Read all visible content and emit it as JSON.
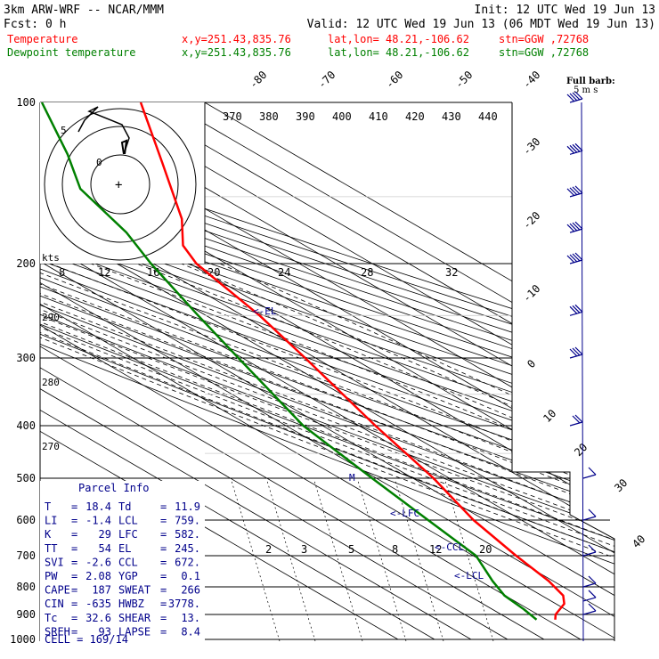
{
  "header": {
    "model": "3km ARW-WRF -- NCAR/MMM",
    "init": "Init: 12 UTC Wed 19 Jun 13",
    "fcst": "Fcst:     0 h",
    "valid": "Valid: 12 UTC Wed 19 Jun 13 (06 MDT Wed 19 Jun 13)"
  },
  "legend": [
    {
      "name": "Temperature",
      "xy": "x,y=251.43,835.76",
      "latlon": "lat,lon= 48.21,-106.62",
      "stn": "stn=GGW ,72768",
      "color": "#ff0000"
    },
    {
      "name": "Dewpoint temperature",
      "xy": "x,y=251.43,835.76",
      "latlon": "lat,lon= 48.21,-106.62",
      "stn": "stn=GGW ,72768",
      "color": "#00a000"
    }
  ],
  "barb_title": [
    "Full barb:",
    "5 m s"
  ],
  "hodo": {
    "kts_label": "kts",
    "ring_labels": [
      "8",
      "12",
      "16",
      "20",
      "24",
      "28",
      "32"
    ],
    "labels": [
      "5",
      "0"
    ]
  },
  "parcel": {
    "title": "Parcel Info",
    "rows": [
      [
        "T",
        "18.4",
        "Td",
        "11.9"
      ],
      [
        "LI",
        "-1.4",
        "LCL",
        "759."
      ],
      [
        "K",
        "29",
        "LFC",
        "582."
      ],
      [
        "TT",
        "54",
        "EL",
        "245."
      ],
      [
        "SVI",
        "-2.6",
        "CCL",
        "672."
      ],
      [
        "PW",
        "2.08",
        "YGP",
        "0.1"
      ],
      [
        "CAPE",
        "187",
        "SWEAT",
        "266"
      ],
      [
        "CIN",
        "-635",
        "HWBZ",
        "3778."
      ],
      [
        "Tc",
        "32.6",
        "SHEAR",
        "13."
      ],
      [
        "SREH",
        "93",
        "LAPSE",
        "8.4"
      ]
    ],
    "cell": "CELL = 169/14"
  },
  "level_markers": {
    "el": "<-EL",
    "lfc": "<-LFC",
    "ccl": "<-CCL",
    "lcl": "<-LCL",
    "m": "M"
  },
  "chart_data": {
    "type": "line",
    "title": "",
    "pressure_levels": [
      100,
      200,
      300,
      400,
      500,
      600,
      700,
      800,
      900,
      1000
    ],
    "isotherm_labels": [
      -80,
      -70,
      -60,
      -50,
      -40,
      -30,
      -20,
      -10,
      0,
      10,
      20,
      30,
      40
    ],
    "theta_labels": [
      370,
      380,
      390,
      400,
      410,
      420,
      430,
      440
    ],
    "theta_low_labels": [
      290,
      280,
      270
    ],
    "mixing_ratio_labels": [
      2,
      3,
      5,
      8,
      12,
      20
    ],
    "series": [
      {
        "name": "Temperature",
        "color": "#ff0000",
        "points": [
          [
            100,
            -60
          ],
          [
            130,
            -62
          ],
          [
            165,
            -64
          ],
          [
            185,
            -68
          ],
          [
            200,
            -66
          ],
          [
            250,
            -51
          ],
          [
            300,
            -41
          ],
          [
            400,
            -26
          ],
          [
            500,
            -13
          ],
          [
            600,
            -5
          ],
          [
            700,
            5
          ],
          [
            780,
            13
          ],
          [
            830,
            16
          ],
          [
            860,
            15
          ],
          [
            900,
            10
          ],
          [
            920,
            9
          ]
        ]
      },
      {
        "name": "Dewpoint temperature",
        "color": "#008000",
        "points": [
          [
            100,
            -97
          ],
          [
            125,
            -96
          ],
          [
            145,
            -97
          ],
          [
            175,
            -87
          ],
          [
            200,
            -83
          ],
          [
            250,
            -74
          ],
          [
            300,
            -66
          ],
          [
            400,
            -53
          ],
          [
            500,
            -36
          ],
          [
            600,
            -22
          ],
          [
            700,
            -10
          ],
          [
            780,
            -8
          ],
          [
            830,
            -6
          ],
          [
            880,
            -1
          ],
          [
            920,
            2
          ]
        ]
      }
    ],
    "wind_barbs": [
      {
        "p": 100,
        "u": -8,
        "v": 22
      },
      {
        "p": 125,
        "u": -7,
        "v": 22
      },
      {
        "p": 150,
        "u": -6,
        "v": 21
      },
      {
        "p": 175,
        "u": -7,
        "v": 20
      },
      {
        "p": 200,
        "u": -6,
        "v": 19
      },
      {
        "p": 250,
        "u": -5,
        "v": 16
      },
      {
        "p": 300,
        "u": -3,
        "v": 13
      },
      {
        "p": 400,
        "u": -2,
        "v": 10
      },
      {
        "p": 500,
        "u": -1,
        "v": 7
      },
      {
        "p": 600,
        "u": 0,
        "v": 5
      },
      {
        "p": 700,
        "u": 2,
        "v": 5
      },
      {
        "p": 800,
        "u": 3,
        "v": 4
      },
      {
        "p": 850,
        "u": 4,
        "v": 3
      },
      {
        "p": 900,
        "u": 5,
        "v": 2
      }
    ]
  }
}
